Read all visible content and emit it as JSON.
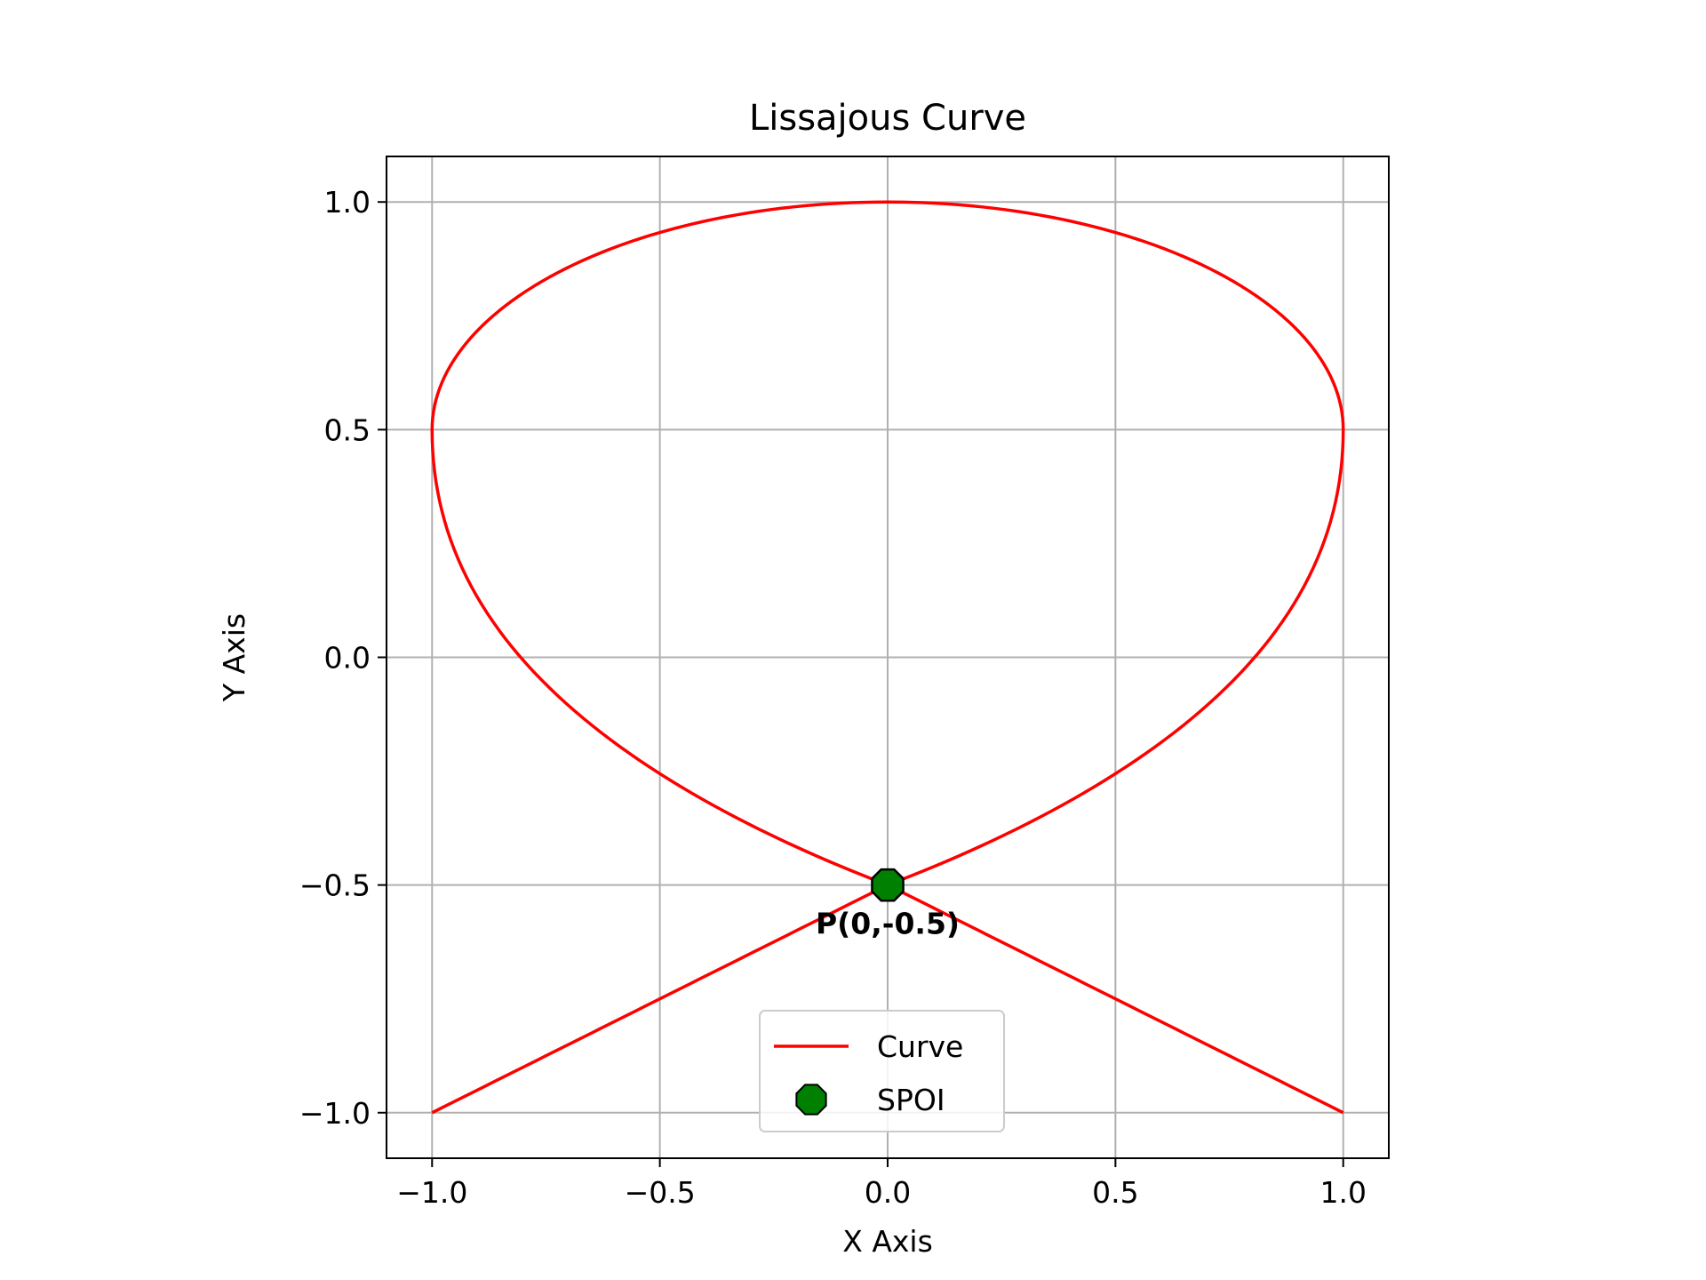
{
  "chart_data": {
    "type": "line",
    "title": "Lissajous Curve",
    "xlabel": "X Axis",
    "ylabel": "Y Axis",
    "xlim": [
      -1.1,
      1.1
    ],
    "ylim": [
      -1.1,
      1.1
    ],
    "xticks": [
      -1.0,
      -0.5,
      0.0,
      0.5,
      1.0
    ],
    "yticks": [
      -1.0,
      -0.5,
      0.0,
      0.5,
      1.0
    ],
    "xtick_labels": [
      "−1.0",
      "−0.5",
      "0.0",
      "0.5",
      "1.0"
    ],
    "ytick_labels": [
      "−1.0",
      "−0.5",
      "0.0",
      "0.5",
      "1.0"
    ],
    "grid": true,
    "legend_position": "lower-center",
    "series": [
      {
        "name": "Curve",
        "kind": "line",
        "color": "#ff0000",
        "x": [
          -1.0,
          -0.9,
          -0.8,
          -0.7,
          -0.6,
          -0.5,
          -0.4,
          -0.3,
          -0.2,
          -0.1,
          0.0,
          0.1,
          0.2,
          0.3,
          0.4,
          0.5,
          0.6,
          0.7,
          0.8,
          0.9,
          1.0,
          0.9965,
          0.9848,
          0.9659,
          0.9397,
          0.9063,
          0.866,
          0.8192,
          0.766,
          0.7071,
          0.6428,
          0.5736,
          0.5,
          0.4226,
          0.342,
          0.2588,
          0.1736,
          0.0872,
          0.0,
          -0.0872,
          -0.1736,
          -0.2588,
          -0.342,
          -0.4226,
          -0.5,
          -0.5736,
          -0.6428,
          -0.7071,
          -0.766,
          -0.8192,
          -0.866,
          -0.9063,
          -0.9397,
          -0.9659,
          -0.9848,
          -0.9965,
          -1.0,
          -0.9,
          -0.8,
          -0.7,
          -0.6,
          -0.5,
          -0.4,
          -0.3,
          -0.2,
          -0.1,
          0.0,
          0.1,
          0.2,
          0.3,
          0.4,
          0.5,
          0.6,
          0.7,
          0.8,
          0.9,
          1.0
        ],
        "y": [
          -1.0,
          -0.95,
          -0.9,
          -0.85,
          -0.8,
          -0.75,
          -0.7,
          -0.65,
          -0.6,
          -0.55,
          -0.5,
          -0.4525,
          -0.4045,
          -0.354,
          -0.2985,
          -0.2365,
          -0.165,
          -0.0805,
          0.0,
          0.1,
          0.5,
          0.5872,
          0.6736,
          0.7588,
          0.842,
          0.9226,
          1.0,
          1.0,
          1.0,
          1.0,
          1.0,
          1.0,
          1.0,
          1.0,
          1.0,
          1.0,
          1.0,
          1.0,
          1.0,
          1.0,
          1.0,
          1.0,
          1.0,
          1.0,
          1.0,
          1.0,
          1.0,
          1.0,
          1.0,
          1.0,
          1.0,
          0.9226,
          0.842,
          0.7588,
          0.6736,
          0.5872,
          0.5,
          0.1,
          0.0,
          -0.0805,
          -0.165,
          -0.2365,
          -0.2985,
          -0.354,
          -0.4045,
          -0.4525,
          -0.5,
          -0.55,
          -0.6,
          -0.65,
          -0.7,
          -0.75,
          -0.8,
          -0.85,
          -0.9,
          -0.95,
          -1.0
        ]
      },
      {
        "name": "SPOI",
        "kind": "scatter",
        "color": "#008000",
        "x": [
          0.0
        ],
        "y": [
          -0.5
        ]
      }
    ],
    "annotations": [
      {
        "text": "P(0,-0.5)",
        "x": 0.0,
        "y": -0.5
      }
    ]
  }
}
